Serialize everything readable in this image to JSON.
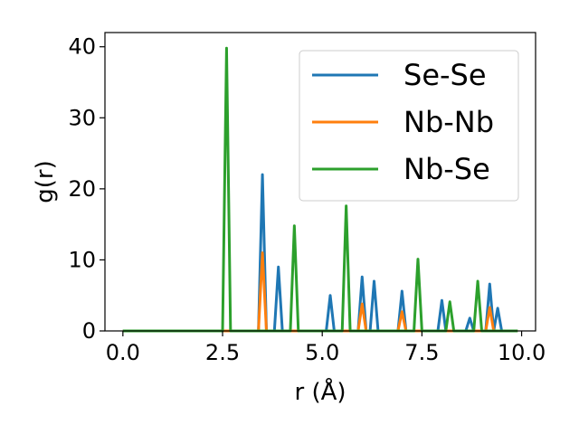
{
  "chart_data": {
    "type": "line",
    "title": "",
    "xlabel": "r (Å)",
    "ylabel": "g(r)",
    "xlim": [
      -0.45,
      10.35
    ],
    "ylim": [
      0,
      42
    ],
    "xticks": [
      0.0,
      2.5,
      5.0,
      7.5,
      10.0
    ],
    "xtick_labels": [
      "0.0",
      "2.5",
      "5.0",
      "7.5",
      "10.0"
    ],
    "yticks": [
      0,
      10,
      20,
      30,
      40
    ],
    "ytick_labels": [
      "0",
      "10",
      "20",
      "30",
      "40"
    ],
    "grid": false,
    "legend_position": "top-right",
    "series": [
      {
        "name": "Se-Se",
        "color": "#1f77b4",
        "peaks": [
          [
            3.5,
            22.0
          ],
          [
            3.9,
            9.0
          ],
          [
            5.2,
            5.0
          ],
          [
            6.0,
            7.6
          ],
          [
            6.3,
            7.0
          ],
          [
            7.0,
            5.6
          ],
          [
            8.0,
            4.3
          ],
          [
            8.7,
            1.8
          ],
          [
            9.2,
            6.6
          ],
          [
            9.4,
            3.2
          ]
        ]
      },
      {
        "name": "Nb-Nb",
        "color": "#ff7f0e",
        "peaks": [
          [
            3.5,
            11.0
          ],
          [
            6.0,
            3.8
          ],
          [
            7.0,
            2.7
          ],
          [
            9.2,
            3.3
          ]
        ]
      },
      {
        "name": "Nb-Se",
        "color": "#2ca02c",
        "peaks": [
          [
            2.6,
            39.8
          ],
          [
            4.3,
            14.8
          ],
          [
            5.6,
            17.6
          ],
          [
            7.4,
            10.1
          ],
          [
            8.2,
            4.1
          ],
          [
            8.9,
            7.0
          ]
        ]
      }
    ],
    "x_start": 0.0,
    "x_end": 9.9,
    "x_step": 0.1
  }
}
